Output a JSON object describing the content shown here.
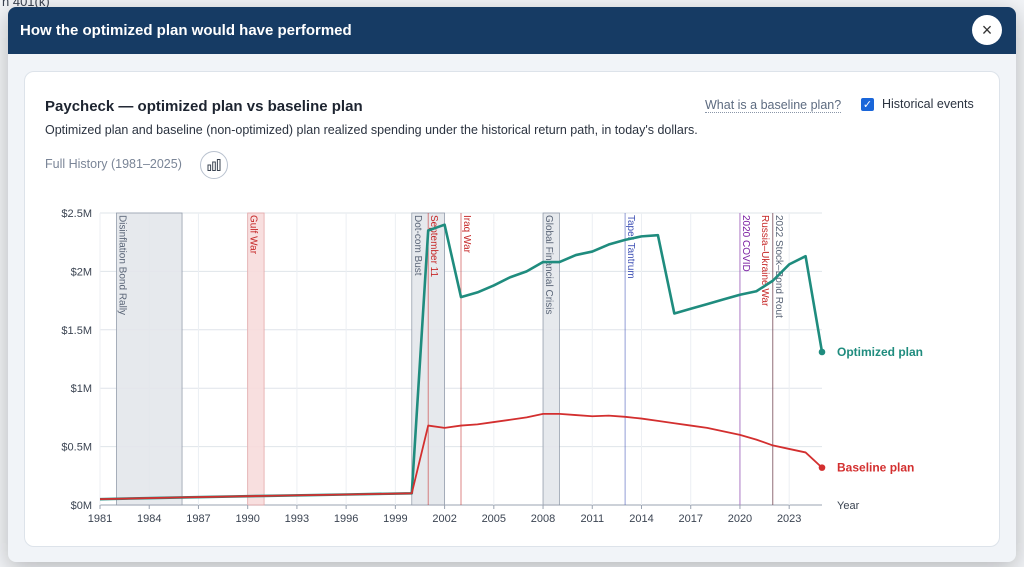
{
  "background": {
    "fragment_top": "n 401(k)"
  },
  "modal": {
    "title": "How the optimized plan would have performed",
    "close_label": "×"
  },
  "card": {
    "title": "Paycheck — optimized plan vs baseline plan",
    "subtitle": "Optimized plan and baseline (non-optimized) plan realized spending under the historical return path, in today's dollars.",
    "baseline_link": "What is a baseline plan?",
    "historical_events_label": "Historical events",
    "historical_events_checked": true,
    "range_label": "Full History (1981–2025)",
    "chart_icon": "bar-chart-icon"
  },
  "colors": {
    "header_bg": "#163b64",
    "optimized": "#1f8c7e",
    "baseline": "#d32f2f",
    "checkbox": "#1a66d9"
  },
  "chart_data": {
    "type": "line",
    "xlabel": "Year",
    "ylabel": "",
    "xlim": [
      1981,
      2025
    ],
    "ylim": [
      0,
      2500000
    ],
    "x_ticks": [
      "1981",
      "1984",
      "1987",
      "1990",
      "1993",
      "1996",
      "1999",
      "2002",
      "2005",
      "2008",
      "2011",
      "2014",
      "2017",
      "2020",
      "2023"
    ],
    "y_ticks": [
      "$0M",
      "$0.5M",
      "$1M",
      "$1.5M",
      "$2M",
      "$2.5M"
    ],
    "grid": true,
    "series": [
      {
        "name": "Optimized plan",
        "color": "#1f8c7e",
        "x": [
          1981,
          1986,
          1991,
          1996,
          2000,
          2001,
          2002,
          2003,
          2004,
          2005,
          2006,
          2007,
          2008,
          2009,
          2010,
          2011,
          2012,
          2013,
          2014,
          2015,
          2016,
          2017,
          2018,
          2019,
          2020,
          2021,
          2022,
          2023,
          2024,
          2025
        ],
        "y": [
          50000,
          65000,
          78000,
          90000,
          100000,
          2350000,
          2400000,
          1780000,
          1820000,
          1880000,
          1950000,
          2000000,
          2080000,
          2080000,
          2140000,
          2170000,
          2230000,
          2270000,
          2300000,
          2310000,
          1640000,
          1680000,
          1720000,
          1760000,
          1800000,
          1830000,
          1920000,
          2060000,
          2130000,
          1310000
        ]
      },
      {
        "name": "Baseline plan",
        "color": "#d32f2f",
        "x": [
          1981,
          1986,
          1991,
          1996,
          2000,
          2001,
          2002,
          2003,
          2004,
          2005,
          2006,
          2007,
          2008,
          2009,
          2010,
          2011,
          2012,
          2013,
          2014,
          2015,
          2016,
          2017,
          2018,
          2019,
          2020,
          2021,
          2022,
          2023,
          2024,
          2025
        ],
        "y": [
          50000,
          65000,
          78000,
          90000,
          100000,
          680000,
          660000,
          680000,
          690000,
          710000,
          730000,
          750000,
          780000,
          780000,
          770000,
          760000,
          765000,
          755000,
          740000,
          720000,
          700000,
          680000,
          660000,
          630000,
          600000,
          560000,
          510000,
          480000,
          450000,
          320000
        ]
      }
    ],
    "events": [
      {
        "label": "Disinflation Bond Rally",
        "start": 1982,
        "end": 1986,
        "color": "#5a6577",
        "kind": "band"
      },
      {
        "label": "Gulf War",
        "start": 1990,
        "end": 1991,
        "color": "#c62828",
        "kind": "band"
      },
      {
        "label": "Dot-com Bust",
        "start": 2000,
        "end": 2002,
        "color": "#5a6577",
        "kind": "band"
      },
      {
        "label": "September 11",
        "start": 2001,
        "end": 2001,
        "color": "#c62828",
        "kind": "line"
      },
      {
        "label": "Iraq War",
        "start": 2003,
        "end": 2003,
        "color": "#c62828",
        "kind": "line"
      },
      {
        "label": "Global Financial Crisis",
        "start": 2008,
        "end": 2009,
        "color": "#5a6577",
        "kind": "band"
      },
      {
        "label": "Taper Tantrum",
        "start": 2013,
        "end": 2013,
        "color": "#3f51b5",
        "kind": "line"
      },
      {
        "label": "2020 COVID",
        "start": 2020,
        "end": 2020,
        "color": "#7b1fa2",
        "kind": "line"
      },
      {
        "label": "Russia–Ukraine War",
        "start": 2022,
        "end": 2022,
        "color": "#c62828",
        "kind": "line"
      },
      {
        "label": "2022 Stock–Bond Rout",
        "start": 2022,
        "end": 2022,
        "color": "#5a6577",
        "kind": "line"
      }
    ]
  }
}
